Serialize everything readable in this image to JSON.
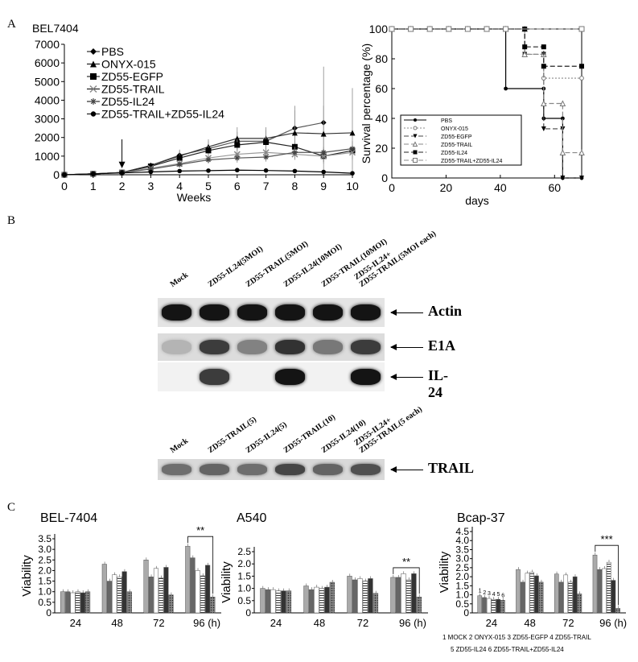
{
  "panels": {
    "a": "A",
    "b": "B",
    "c": "C"
  },
  "chart_data": [
    {
      "id": "growth",
      "type": "line",
      "title": "BEL7404",
      "xlabel": "Weeks",
      "ylabel": "",
      "xlim": [
        0,
        10
      ],
      "ylim": [
        0,
        7000
      ],
      "xticks": [
        "0",
        "1",
        "2",
        "3",
        "4",
        "5",
        "6",
        "7",
        "8",
        "9",
        "10"
      ],
      "yticks": [
        "0",
        "1000",
        "2000",
        "3000",
        "4000",
        "5000",
        "6000",
        "7000"
      ],
      "annotation": "arrow at week 2",
      "legend": "top-left",
      "x": [
        0,
        1,
        2,
        3,
        4,
        5,
        6,
        7,
        8,
        9,
        10
      ],
      "series": [
        {
          "name": "PBS",
          "marker": "diamond",
          "values": [
            0,
            50,
            120,
            500,
            1050,
            1400,
            1800,
            1800,
            2500,
            2800,
            null
          ],
          "err": [
            0,
            20,
            40,
            150,
            300,
            400,
            500,
            600,
            1200,
            3000,
            null
          ]
        },
        {
          "name": "ONYX-015",
          "marker": "triangle",
          "values": [
            0,
            50,
            120,
            500,
            1000,
            1500,
            1950,
            1950,
            2250,
            2200,
            2250
          ],
          "err": [
            0,
            20,
            40,
            150,
            300,
            400,
            600,
            600,
            1200,
            1500,
            2400
          ]
        },
        {
          "name": "ZD55-EGFP",
          "marker": "square",
          "values": [
            0,
            50,
            120,
            450,
            900,
            1300,
            1600,
            1750,
            1500,
            1000,
            1300
          ],
          "err": [
            0,
            20,
            40,
            150,
            200,
            250,
            300,
            300,
            300,
            400,
            500
          ]
        },
        {
          "name": "ZD55-TRAIL",
          "marker": "x",
          "values": [
            0,
            50,
            120,
            350,
            600,
            900,
            1100,
            1200,
            1100,
            1000,
            1200
          ],
          "err": [
            0,
            20,
            40,
            100,
            200,
            200,
            300,
            300,
            300,
            300,
            300
          ]
        },
        {
          "name": "ZD55-IL24",
          "marker": "star",
          "values": [
            0,
            50,
            120,
            300,
            550,
            800,
            900,
            950,
            1200,
            1200,
            1400
          ],
          "err": [
            0,
            20,
            40,
            100,
            150,
            200,
            250,
            250,
            300,
            300,
            400
          ]
        },
        {
          "name": "ZD55-TRAIL+ZD55-IL24",
          "marker": "dot",
          "values": [
            0,
            50,
            100,
            150,
            200,
            220,
            250,
            230,
            200,
            150,
            80
          ],
          "err": [
            0,
            10,
            20,
            30,
            40,
            40,
            40,
            40,
            40,
            30,
            20
          ]
        }
      ]
    },
    {
      "id": "survival",
      "type": "line",
      "title": "",
      "xlabel": "days",
      "ylabel": "Survival percentage (%)",
      "xlim": [
        0,
        70
      ],
      "ylim": [
        0,
        100
      ],
      "xticks": [
        "0",
        "20",
        "40",
        "60"
      ],
      "yticks": [
        "0",
        "20",
        "40",
        "60",
        "80",
        "100"
      ],
      "legend": "bottom-left",
      "series": [
        {
          "name": "PBS",
          "style": "solid",
          "marker": "dot",
          "points": [
            [
              0,
              100
            ],
            [
              42,
              100
            ],
            [
              42,
              60
            ],
            [
              56,
              60
            ],
            [
              56,
              40
            ],
            [
              63,
              40
            ],
            [
              63,
              0
            ],
            [
              70,
              0
            ]
          ]
        },
        {
          "name": "ONYX-015",
          "style": "dotted",
          "marker": "open-circle",
          "points": [
            [
              0,
              100
            ],
            [
              49,
              100
            ],
            [
              49,
              83
            ],
            [
              56,
              83
            ],
            [
              56,
              67
            ],
            [
              70,
              67
            ]
          ]
        },
        {
          "name": "ZD55-EGFP",
          "style": "dashed",
          "marker": "down-triangle",
          "points": [
            [
              0,
              100
            ],
            [
              49,
              100
            ],
            [
              49,
              83
            ],
            [
              56,
              83
            ],
            [
              56,
              33
            ],
            [
              63,
              33
            ],
            [
              63,
              0
            ],
            [
              70,
              0
            ]
          ]
        },
        {
          "name": "ZD55-TRAIL",
          "style": "dashed",
          "marker": "open-triangle",
          "points": [
            [
              0,
              100
            ],
            [
              49,
              100
            ],
            [
              49,
              83
            ],
            [
              56,
              83
            ],
            [
              56,
              50
            ],
            [
              63,
              50
            ],
            [
              63,
              17
            ],
            [
              70,
              17
            ]
          ]
        },
        {
          "name": "ZD55-IL24",
          "style": "dashed",
          "marker": "square",
          "points": [
            [
              0,
              100
            ],
            [
              49,
              100
            ],
            [
              49,
              88
            ],
            [
              56,
              88
            ],
            [
              56,
              75
            ],
            [
              70,
              75
            ]
          ]
        },
        {
          "name": "ZD55-TRAIL+ZD55-IL24",
          "style": "dashed",
          "marker": "open-square",
          "points": [
            [
              0,
              100
            ],
            [
              70,
              100
            ]
          ]
        }
      ]
    },
    {
      "id": "bel",
      "type": "bar",
      "title": "BEL-7404",
      "ylabel": "Viability",
      "categories": [
        "24",
        "48",
        "72",
        "96"
      ],
      "unit": "(h)",
      "ylim": [
        0,
        3.5
      ],
      "yticks": [
        "0",
        "0.5",
        "1.0",
        "1.5",
        "2.0",
        "2.5",
        "3.0",
        "3.5"
      ],
      "significance": "**",
      "series": [
        {
          "values": [
            1.0,
            2.3,
            2.5,
            3.15
          ]
        },
        {
          "values": [
            1.0,
            1.5,
            1.7,
            2.6
          ]
        },
        {
          "values": [
            0.95,
            1.8,
            2.1,
            2.0
          ]
        },
        {
          "values": [
            1.0,
            1.7,
            1.65,
            1.75
          ]
        },
        {
          "values": [
            0.95,
            1.95,
            2.15,
            2.25
          ]
        },
        {
          "values": [
            1.0,
            1.0,
            0.85,
            0.75
          ]
        }
      ]
    },
    {
      "id": "a540",
      "type": "bar",
      "title": "A540",
      "ylabel": "Viability",
      "categories": [
        "24",
        "48",
        "72",
        "96"
      ],
      "unit": "(h)",
      "ylim": [
        0,
        2.5
      ],
      "yticks": [
        "0",
        "0.5",
        "1.0",
        "1.5",
        "2.0",
        "2.5"
      ],
      "significance": "**",
      "series": [
        {
          "values": [
            1.0,
            1.1,
            1.5,
            1.45
          ]
        },
        {
          "values": [
            0.95,
            0.95,
            1.35,
            1.45
          ]
        },
        {
          "values": [
            0.95,
            1.05,
            1.4,
            1.6
          ]
        },
        {
          "values": [
            0.9,
            1.0,
            1.3,
            1.35
          ]
        },
        {
          "values": [
            0.9,
            1.05,
            1.4,
            1.6
          ]
        },
        {
          "values": [
            0.9,
            1.25,
            0.8,
            0.65
          ]
        }
      ]
    },
    {
      "id": "bcap",
      "type": "bar",
      "title": "Bcap-37",
      "ylabel": "Viability",
      "categories": [
        "24",
        "48",
        "72",
        "96"
      ],
      "unit": "(h)",
      "ylim": [
        0,
        4.5
      ],
      "yticks": [
        "0",
        "0.5",
        "1.0",
        "1.5",
        "2.0",
        "2.5",
        "3.0",
        "3.5",
        "4.0",
        "4.5"
      ],
      "significance": "***",
      "bar_numbers": [
        "1",
        "2",
        "3",
        "4",
        "5",
        "6"
      ],
      "series": [
        {
          "values": [
            0.95,
            2.4,
            2.15,
            3.2
          ]
        },
        {
          "values": [
            0.85,
            1.7,
            1.7,
            2.4
          ]
        },
        {
          "values": [
            0.8,
            2.2,
            2.1,
            2.45
          ]
        },
        {
          "values": [
            0.75,
            2.25,
            1.7,
            2.8
          ]
        },
        {
          "values": [
            0.75,
            2.05,
            2.0,
            1.8
          ]
        },
        {
          "values": [
            0.7,
            1.7,
            1.05,
            0.25
          ]
        }
      ],
      "legend_lines": [
        "1 MOCK    2 ONYX-015   3 ZD55-EGFP   4 ZD55-TRAIL",
        "5 ZD55-IL24     6 ZD55-TRAIL+ZD55-IL24"
      ]
    }
  ],
  "blot_top": {
    "lanes": [
      "Mock",
      "ZD55-IL24(5MOI)",
      "ZD55-TRAIL(5MOI)",
      "ZD55-IL24(10MOI)",
      "ZD55-TRAIL(10MOI)",
      "ZD55-IL24+\nZD55-TRAIL(5MOI each)"
    ],
    "rows": [
      {
        "name": "Actin",
        "intensity": [
          1,
          1,
          1,
          1,
          1,
          1
        ]
      },
      {
        "name": "E1A",
        "intensity": [
          0.2,
          0.8,
          0.45,
          0.85,
          0.5,
          0.8
        ]
      },
      {
        "name": "IL-24",
        "intensity": [
          0,
          0.8,
          0,
          1,
          0,
          1
        ]
      }
    ]
  },
  "blot_bottom": {
    "lanes": [
      "Mock",
      "ZD55-TRAIL(5)",
      "ZD55-IL24(5)",
      "ZD55-TRAIL(10)",
      "ZD55-IL24(10)",
      "ZD55-IL24+\nZD55-TRAIL(5 each)"
    ],
    "rows": [
      {
        "name": "TRAIL",
        "intensity": [
          0.55,
          0.6,
          0.55,
          0.75,
          0.6,
          0.7
        ]
      }
    ]
  }
}
